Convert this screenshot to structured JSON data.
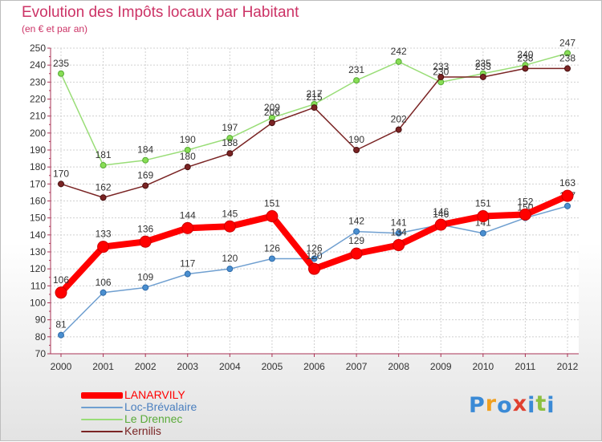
{
  "chart_data": {
    "type": "line",
    "title": "Evolution des Impôts locaux par Habitant",
    "subtitle": "(en € et par an)",
    "xlabel": "",
    "ylabel": "",
    "ylim": [
      70,
      250
    ],
    "y_ticks": [
      70,
      80,
      90,
      100,
      110,
      120,
      130,
      140,
      150,
      160,
      170,
      180,
      190,
      200,
      210,
      220,
      230,
      240,
      250
    ],
    "categories": [
      "2000",
      "2001",
      "2002",
      "2003",
      "2004",
      "2005",
      "2006",
      "2007",
      "2008",
      "2009",
      "2010",
      "2011",
      "2012"
    ],
    "grid": true,
    "legend_position": "bottom-left",
    "series": [
      {
        "name": "LANARVILY",
        "color": "#ff0000",
        "values": [
          106,
          133,
          136,
          144,
          145,
          151,
          120,
          129,
          134,
          146,
          151,
          152,
          163
        ]
      },
      {
        "name": "Loc-Brévalaire",
        "color": "#6f9fd0",
        "values": [
          81,
          106,
          109,
          117,
          120,
          126,
          126,
          142,
          141,
          146,
          141,
          150,
          157
        ]
      },
      {
        "name": "Le Drennec",
        "color": "#99dd77",
        "values": [
          235,
          181,
          184,
          190,
          197,
          209,
          217,
          231,
          242,
          230,
          235,
          240,
          247
        ]
      },
      {
        "name": "Kernilis",
        "color": "#7a2424",
        "values": [
          170,
          162,
          169,
          180,
          188,
          206,
          215,
          190,
          202,
          233,
          233,
          238,
          238
        ]
      }
    ]
  },
  "logo": {
    "letters": [
      "P",
      "r",
      "o",
      "x",
      "i",
      "t",
      "i"
    ],
    "colors": [
      "#3a8ad6",
      "#f0a020",
      "#3a8ad6",
      "#e04030",
      "#3a8ad6",
      "#8cc040",
      "#3a8ad6"
    ]
  }
}
